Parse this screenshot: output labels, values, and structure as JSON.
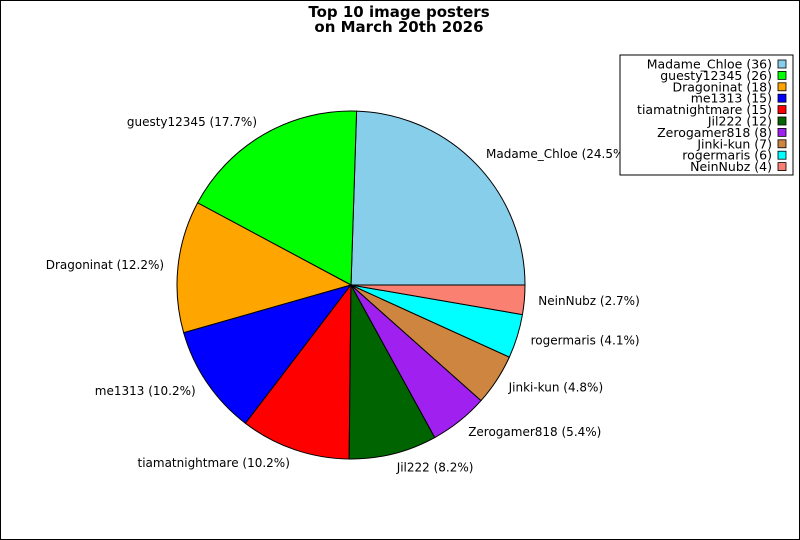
{
  "chart_data": {
    "type": "pie",
    "title_lines": [
      "Top 10 image posters",
      "on March 20th 2026"
    ],
    "slices": [
      {
        "label": "Madame_Chloe (24.5%)",
        "legend": "Madame_Chloe (36)",
        "value": 36,
        "color": "#87CEEB"
      },
      {
        "label": "guesty12345 (17.7%)",
        "legend": "guesty12345 (26)",
        "value": 26,
        "color": "#00FF00"
      },
      {
        "label": "Dragoninat (12.2%)",
        "legend": "Dragoninat (18)",
        "value": 18,
        "color": "#FFA500"
      },
      {
        "label": "me1313 (10.2%)",
        "legend": "me1313 (15)",
        "value": 15,
        "color": "#0000FF"
      },
      {
        "label": "tiamatnightmare (10.2%)",
        "legend": "tiamatnightmare (15)",
        "value": 15,
        "color": "#FF0000"
      },
      {
        "label": "Jil222 (8.2%)",
        "legend": "Jil222 (12)",
        "value": 12,
        "color": "#006400"
      },
      {
        "label": "Zerogamer818 (5.4%)",
        "legend": "Zerogamer818 (8)",
        "value": 8,
        "color": "#A020F0"
      },
      {
        "label": "Jinki-kun (4.8%)",
        "legend": "Jinki-kun (7)",
        "value": 7,
        "color": "#CD853F"
      },
      {
        "label": "rogermaris (4.1%)",
        "legend": "rogermaris (6)",
        "value": 6,
        "color": "#00FFFF"
      },
      {
        "label": "NeinNubz (2.7%)",
        "legend": "NeinNubz (4)",
        "value": 4,
        "color": "#FA8072"
      }
    ],
    "start_angle": "east",
    "direction": "counterclockwise",
    "legend_placement": "top-right"
  }
}
